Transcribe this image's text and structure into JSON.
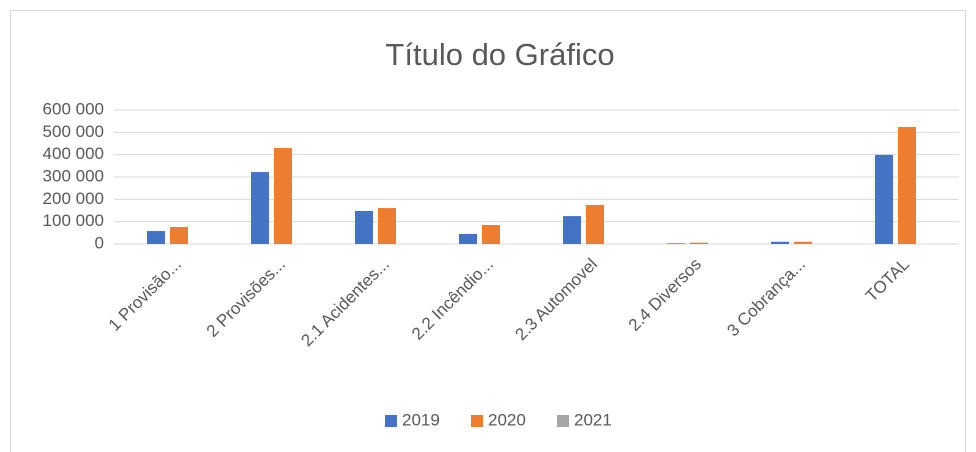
{
  "chart_data": {
    "type": "bar",
    "title": "Título do Gráfico",
    "categories": [
      "1 Provisão...",
      "2 Provisões...",
      "2.1 Acidentes...",
      "2.2 Incêndio...",
      "2.3 Automovel",
      "2.4 Diversos",
      "3 Cobrança...",
      "TOTAL"
    ],
    "series": [
      {
        "name": "2019",
        "color": "#4472c4",
        "values": [
          58000,
          322000,
          148000,
          45000,
          125000,
          3000,
          10000,
          399000
        ]
      },
      {
        "name": "2020",
        "color": "#ed7d31",
        "values": [
          76000,
          430000,
          161000,
          85000,
          175000,
          6000,
          10000,
          524000
        ]
      },
      {
        "name": "2021",
        "color": "#a5a5a5",
        "values": [
          null,
          null,
          null,
          null,
          null,
          null,
          null,
          null
        ]
      }
    ],
    "ylim": [
      0,
      600000
    ],
    "yticks": [
      0,
      {
        "value": 100000,
        "label": "100 000"
      },
      {
        "value": 200000,
        "label": "200 000"
      },
      {
        "value": 300000,
        "label": "300 000"
      },
      {
        "value": 400000,
        "label": "400 000"
      },
      {
        "value": 500000,
        "label": "500 000"
      },
      {
        "value": 600000,
        "label": "600 000"
      }
    ],
    "grid": true,
    "legend": "bottom"
  }
}
